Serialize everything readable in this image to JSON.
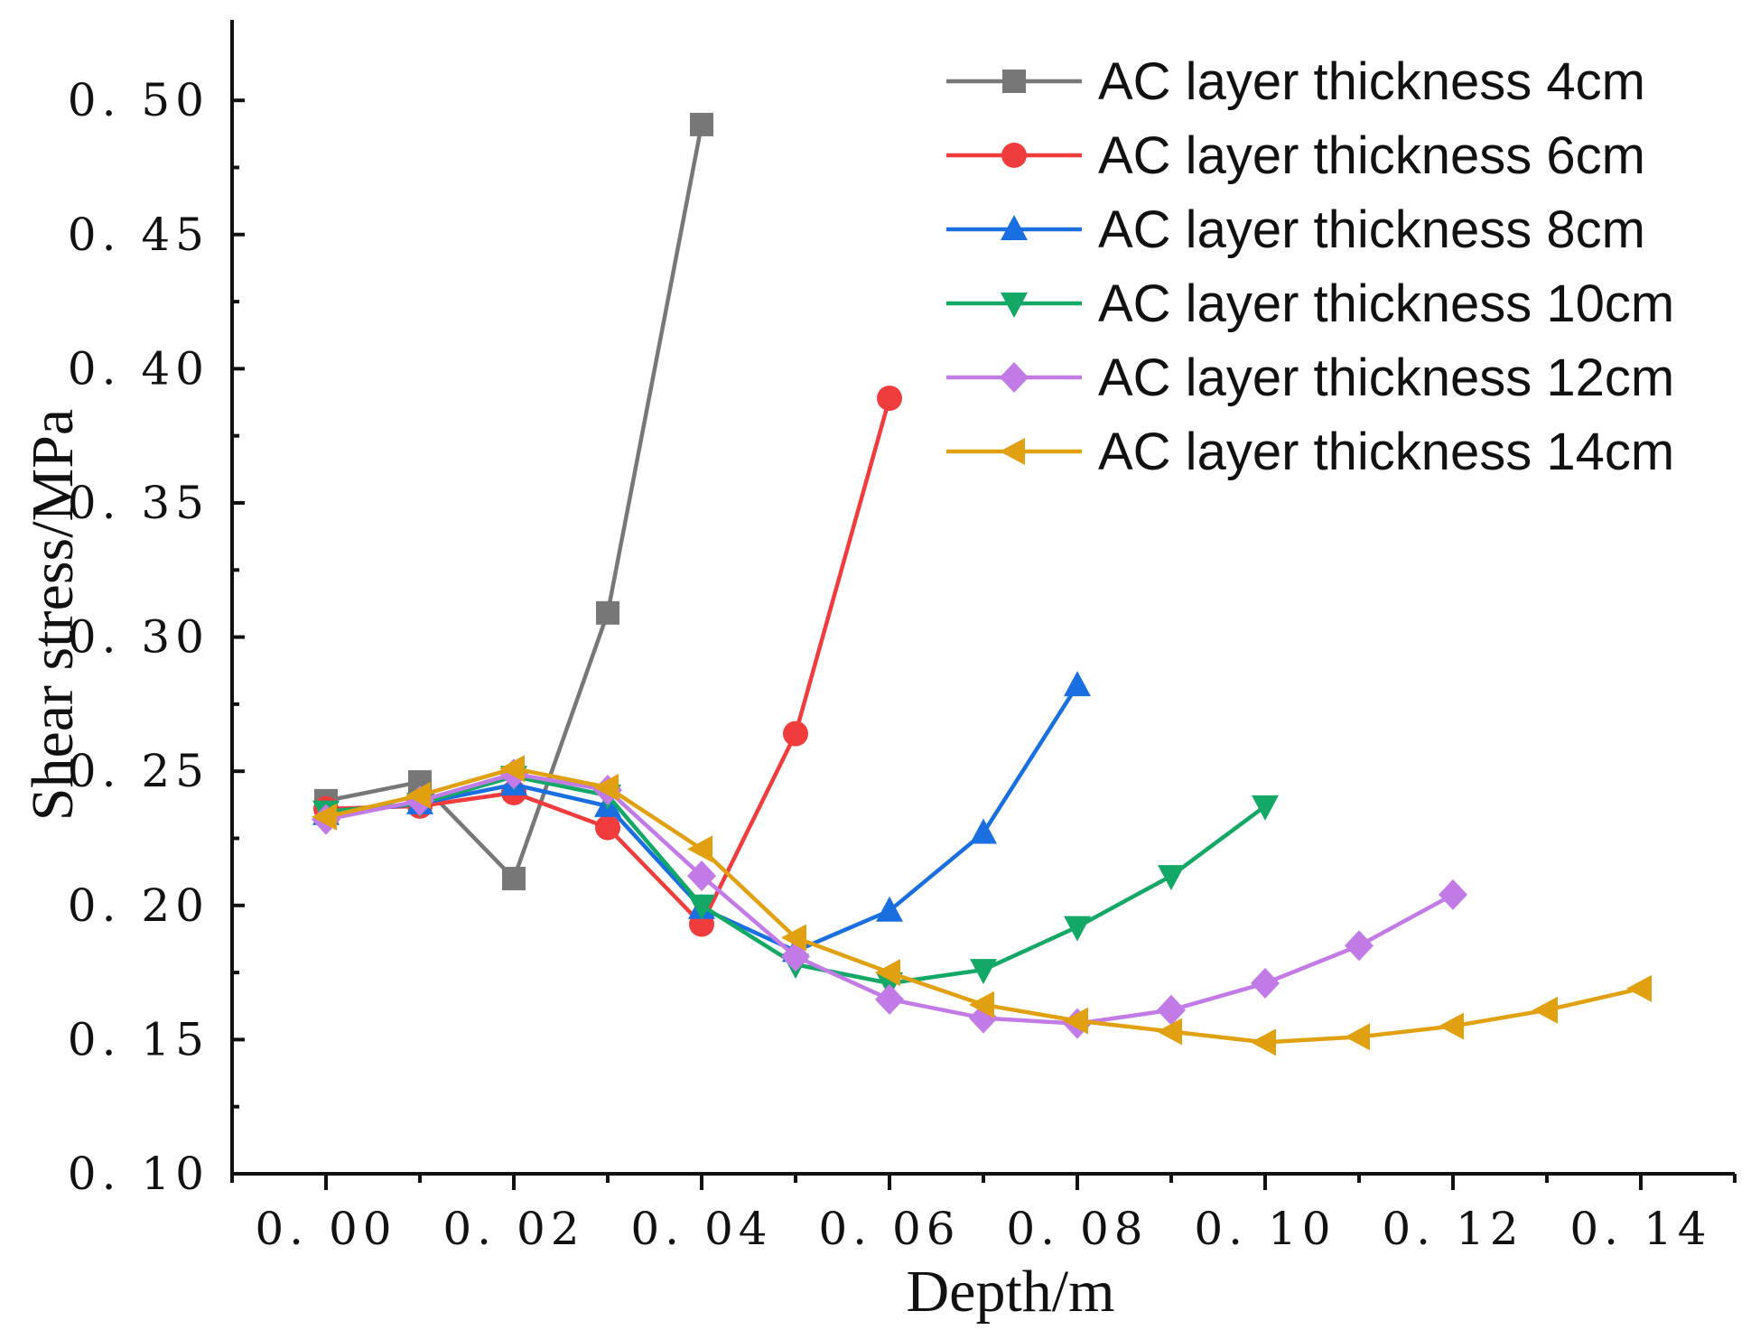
{
  "chart_data": {
    "type": "line",
    "title": "",
    "xlabel": "Depth/m",
    "ylabel": "Shear stress/MPa",
    "xlim": [
      -0.01,
      0.15
    ],
    "ylim": [
      0.1,
      0.53
    ],
    "x_ticks": [
      "0. 00",
      "0. 02",
      "0. 04",
      "0. 06",
      "0. 08",
      "0. 10",
      "0. 12",
      "0. 14"
    ],
    "x_tick_values": [
      0.0,
      0.02,
      0.04,
      0.06,
      0.08,
      0.1,
      0.12,
      0.14
    ],
    "y_ticks": [
      "0. 10",
      "0. 15",
      "0. 20",
      "0. 25",
      "0. 30",
      "0. 35",
      "0. 40",
      "0. 45",
      "0. 50"
    ],
    "y_tick_values": [
      0.1,
      0.15,
      0.2,
      0.25,
      0.3,
      0.35,
      0.4,
      0.45,
      0.5
    ],
    "legend_position": "top-right",
    "series": [
      {
        "name": "AC layer thickness 4cm",
        "color": "#777777",
        "marker": "square",
        "x": [
          0.0,
          0.01,
          0.02,
          0.03,
          0.04
        ],
        "y": [
          0.239,
          0.246,
          0.21,
          0.309,
          0.491
        ]
      },
      {
        "name": "AC layer thickness 6cm",
        "color": "#f03c3c",
        "marker": "circle",
        "x": [
          0.0,
          0.01,
          0.02,
          0.03,
          0.04,
          0.05,
          0.06
        ],
        "y": [
          0.236,
          0.237,
          0.242,
          0.229,
          0.193,
          0.264,
          0.389
        ]
      },
      {
        "name": "AC layer thickness 8cm",
        "color": "#1a6fe0",
        "marker": "triangle-up",
        "x": [
          0.0,
          0.01,
          0.02,
          0.03,
          0.04,
          0.05,
          0.06,
          0.07,
          0.08
        ],
        "y": [
          0.234,
          0.238,
          0.245,
          0.237,
          0.199,
          0.183,
          0.198,
          0.227,
          0.282
        ]
      },
      {
        "name": "AC layer thickness 10cm",
        "color": "#13a865",
        "marker": "triangle-down",
        "x": [
          0.0,
          0.01,
          0.02,
          0.03,
          0.04,
          0.05,
          0.06,
          0.07,
          0.08,
          0.09,
          0.1
        ],
        "y": [
          0.235,
          0.238,
          0.248,
          0.241,
          0.2,
          0.178,
          0.171,
          0.176,
          0.192,
          0.211,
          0.237
        ]
      },
      {
        "name": "AC layer thickness 12cm",
        "color": "#c27ae6",
        "marker": "diamond",
        "x": [
          0.0,
          0.01,
          0.02,
          0.03,
          0.04,
          0.05,
          0.06,
          0.07,
          0.08,
          0.09,
          0.1,
          0.11,
          0.12
        ],
        "y": [
          0.232,
          0.239,
          0.249,
          0.243,
          0.211,
          0.181,
          0.165,
          0.158,
          0.156,
          0.161,
          0.171,
          0.185,
          0.204
        ]
      },
      {
        "name": "AC layer thickness 14cm",
        "color": "#e0a010",
        "marker": "triangle-left",
        "x": [
          0.0,
          0.01,
          0.02,
          0.03,
          0.04,
          0.05,
          0.06,
          0.07,
          0.08,
          0.09,
          0.1,
          0.11,
          0.12,
          0.13,
          0.14
        ],
        "y": [
          0.233,
          0.241,
          0.251,
          0.244,
          0.221,
          0.188,
          0.175,
          0.163,
          0.157,
          0.153,
          0.149,
          0.151,
          0.155,
          0.161,
          0.169
        ]
      }
    ]
  }
}
